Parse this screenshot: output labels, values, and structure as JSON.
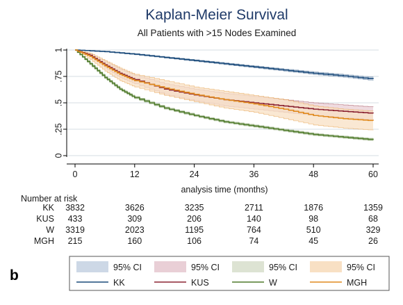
{
  "panel_label": "b",
  "chart_data": {
    "type": "line",
    "title": "Kaplan-Meier Survival",
    "subtitle": "All Patients with >15 Nodes Examined",
    "xlabel": "analysis time (months)",
    "ylabel": "",
    "xlim": [
      0,
      60
    ],
    "ylim": [
      0,
      1
    ],
    "x_ticks": [
      0,
      12,
      24,
      36,
      48,
      60
    ],
    "y_ticks": [
      0,
      0.25,
      0.5,
      0.75,
      1
    ],
    "y_tick_labels": [
      "0",
      ".25",
      ".5",
      ".75",
      "1"
    ],
    "grid": true,
    "step": true,
    "series": [
      {
        "name": "KK",
        "color": "#1a4a7a",
        "band_color": "#cdd8e6",
        "x": [
          0,
          6,
          12,
          18,
          24,
          30,
          36,
          42,
          48,
          54,
          60
        ],
        "y": [
          1.0,
          0.985,
          0.96,
          0.93,
          0.9,
          0.87,
          0.84,
          0.81,
          0.78,
          0.755,
          0.725
        ],
        "lower": [
          1.0,
          0.982,
          0.955,
          0.924,
          0.893,
          0.862,
          0.831,
          0.8,
          0.768,
          0.742,
          0.71
        ],
        "upper": [
          1.0,
          0.988,
          0.965,
          0.936,
          0.907,
          0.878,
          0.849,
          0.82,
          0.792,
          0.768,
          0.74
        ]
      },
      {
        "name": "KUS",
        "color": "#8b2332",
        "band_color": "#e9cfd6",
        "x": [
          0,
          3,
          6,
          9,
          12,
          18,
          24,
          30,
          36,
          42,
          48,
          54,
          60
        ],
        "y": [
          1.0,
          0.95,
          0.86,
          0.78,
          0.72,
          0.63,
          0.575,
          0.53,
          0.5,
          0.47,
          0.44,
          0.42,
          0.4
        ],
        "lower": [
          1.0,
          0.94,
          0.83,
          0.74,
          0.68,
          0.58,
          0.52,
          0.47,
          0.44,
          0.41,
          0.38,
          0.36,
          0.34
        ],
        "upper": [
          1.0,
          0.96,
          0.89,
          0.82,
          0.76,
          0.68,
          0.63,
          0.59,
          0.56,
          0.53,
          0.5,
          0.48,
          0.46
        ]
      },
      {
        "name": "W",
        "color": "#4e7a2a",
        "band_color": "#dde3d3",
        "x": [
          0,
          3,
          6,
          9,
          12,
          18,
          24,
          30,
          36,
          42,
          48,
          54,
          60
        ],
        "y": [
          1.0,
          0.87,
          0.74,
          0.63,
          0.55,
          0.45,
          0.38,
          0.32,
          0.28,
          0.24,
          0.2,
          0.175,
          0.15
        ],
        "lower": [
          1.0,
          0.86,
          0.73,
          0.62,
          0.54,
          0.44,
          0.37,
          0.31,
          0.27,
          0.23,
          0.19,
          0.165,
          0.14
        ],
        "upper": [
          1.0,
          0.88,
          0.75,
          0.64,
          0.56,
          0.46,
          0.39,
          0.33,
          0.29,
          0.25,
          0.21,
          0.185,
          0.16
        ]
      },
      {
        "name": "MGH",
        "color": "#e08a1e",
        "band_color": "#f8e0c4",
        "x": [
          0,
          3,
          6,
          9,
          12,
          18,
          24,
          30,
          36,
          42,
          48,
          54,
          60
        ],
        "y": [
          1.0,
          0.94,
          0.85,
          0.77,
          0.71,
          0.64,
          0.58,
          0.53,
          0.49,
          0.44,
          0.38,
          0.35,
          0.33
        ],
        "lower": [
          1.0,
          0.91,
          0.8,
          0.71,
          0.65,
          0.57,
          0.51,
          0.45,
          0.41,
          0.35,
          0.29,
          0.26,
          0.24
        ],
        "upper": [
          1.0,
          0.97,
          0.9,
          0.83,
          0.77,
          0.71,
          0.65,
          0.61,
          0.57,
          0.53,
          0.47,
          0.44,
          0.42
        ]
      }
    ],
    "risk_table": {
      "title": "Number at risk",
      "times": [
        0,
        12,
        24,
        36,
        48,
        60
      ],
      "rows": [
        {
          "label": "KK",
          "counts": [
            "3832",
            "3626",
            "3235",
            "2711",
            "1876",
            "1359"
          ]
        },
        {
          "label": "KUS",
          "counts": [
            "433",
            "309",
            "206",
            "140",
            "98",
            "68"
          ]
        },
        {
          "label": "W",
          "counts": [
            "3319",
            "2023",
            "1195",
            "764",
            "510",
            "329"
          ]
        },
        {
          "label": "MGH",
          "counts": [
            "215",
            "160",
            "106",
            "74",
            "45",
            "26"
          ]
        }
      ]
    },
    "legend": {
      "placement": "bottom",
      "ci_label": "95% CI",
      "entries": [
        "KK",
        "KUS",
        "W",
        "MGH"
      ]
    }
  }
}
